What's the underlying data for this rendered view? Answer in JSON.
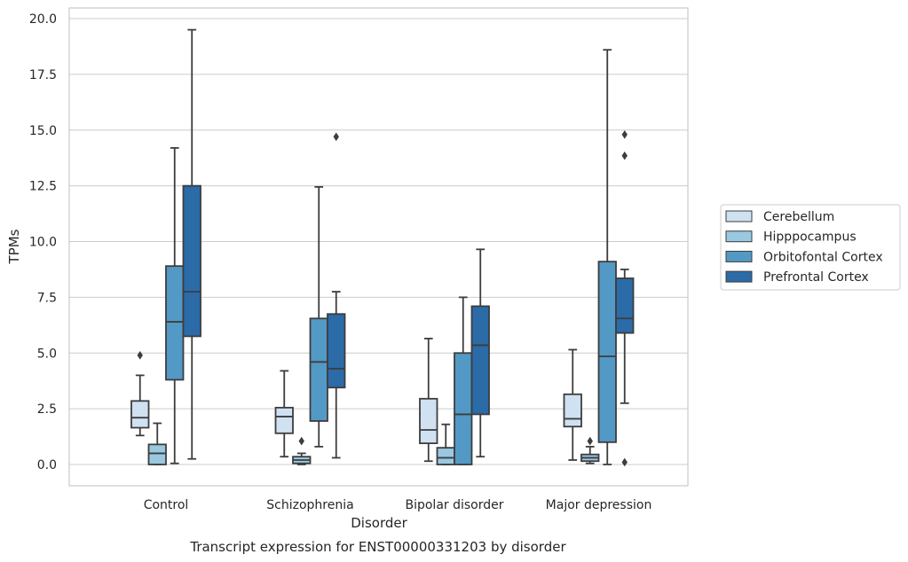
{
  "chart_data": {
    "type": "box",
    "xlabel": "Disorder",
    "ylabel": "TPMs",
    "caption": "Transcript expression for ENST00000331203 by disorder",
    "ylim": [
      -0.9,
      20.3
    ],
    "yticks": [
      "0.0",
      "2.5",
      "5.0",
      "7.5",
      "10.0",
      "12.5",
      "15.0",
      "17.5",
      "20.0"
    ],
    "grid": "horizontal",
    "legend_position": "right",
    "categories": [
      "Control",
      "Schizophrenia",
      "Bipolar disorder",
      "Major depression"
    ],
    "series": [
      {
        "name": "Cerebellum",
        "color": "#d0e1f2",
        "boxes": [
          {
            "whisker_low": 1.3,
            "q1": 1.65,
            "median": 2.1,
            "q3": 2.85,
            "whisker_high": 4.0,
            "outliers": [
              4.9
            ]
          },
          {
            "whisker_low": 0.35,
            "q1": 1.4,
            "median": 2.15,
            "q3": 2.55,
            "whisker_high": 4.2,
            "outliers": []
          },
          {
            "whisker_low": 0.15,
            "q1": 0.95,
            "median": 1.55,
            "q3": 2.95,
            "whisker_high": 5.65,
            "outliers": []
          },
          {
            "whisker_low": 0.2,
            "q1": 1.7,
            "median": 2.05,
            "q3": 3.15,
            "whisker_high": 5.15,
            "outliers": []
          }
        ]
      },
      {
        "name": "Hipppocampus",
        "color": "#9ac8e0",
        "boxes": [
          {
            "whisker_low": 0.0,
            "q1": 0.0,
            "median": 0.5,
            "q3": 0.9,
            "whisker_high": 1.85,
            "outliers": []
          },
          {
            "whisker_low": 0.0,
            "q1": 0.05,
            "median": 0.2,
            "q3": 0.35,
            "whisker_high": 0.5,
            "outliers": [
              1.05
            ]
          },
          {
            "whisker_low": 0.0,
            "q1": 0.0,
            "median": 0.3,
            "q3": 0.75,
            "whisker_high": 1.8,
            "outliers": []
          },
          {
            "whisker_low": 0.05,
            "q1": 0.15,
            "median": 0.3,
            "q3": 0.45,
            "whisker_high": 0.8,
            "outliers": [
              1.05
            ]
          }
        ]
      },
      {
        "name": "Orbitofontal Cortex",
        "color": "#5399c6",
        "boxes": [
          {
            "whisker_low": 0.05,
            "q1": 3.8,
            "median": 6.4,
            "q3": 8.9,
            "whisker_high": 14.2,
            "outliers": []
          },
          {
            "whisker_low": 0.8,
            "q1": 1.95,
            "median": 4.6,
            "q3": 6.55,
            "whisker_high": 12.45,
            "outliers": []
          },
          {
            "whisker_low": 0.0,
            "q1": 0.0,
            "median": 2.25,
            "q3": 5.0,
            "whisker_high": 7.5,
            "outliers": []
          },
          {
            "whisker_low": 0.0,
            "q1": 1.0,
            "median": 4.85,
            "q3": 9.1,
            "whisker_high": 18.6,
            "outliers": []
          }
        ]
      },
      {
        "name": "Prefrontal Cortex",
        "color": "#2b6ba8",
        "boxes": [
          {
            "whisker_low": 0.25,
            "q1": 5.75,
            "median": 7.75,
            "q3": 12.5,
            "whisker_high": 19.5,
            "outliers": []
          },
          {
            "whisker_low": 0.3,
            "q1": 3.45,
            "median": 4.3,
            "q3": 6.75,
            "whisker_high": 7.75,
            "outliers": [
              14.7
            ]
          },
          {
            "whisker_low": 0.35,
            "q1": 2.25,
            "median": 5.35,
            "q3": 7.1,
            "whisker_high": 9.65,
            "outliers": []
          },
          {
            "whisker_low": 2.75,
            "q1": 5.9,
            "median": 6.55,
            "q3": 8.35,
            "whisker_high": 8.75,
            "outliers": [
              0.1,
              13.85,
              14.8
            ]
          }
        ]
      }
    ]
  }
}
